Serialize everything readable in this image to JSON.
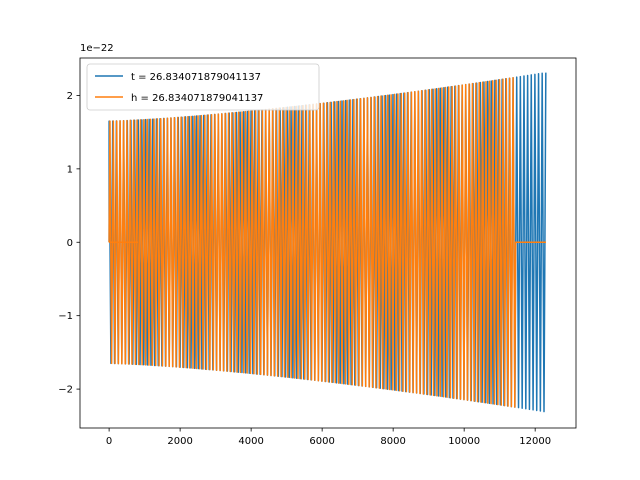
{
  "chart_data": {
    "type": "line",
    "title": "",
    "xlabel": "",
    "ylabel": "",
    "xlim": [
      -820,
      13150
    ],
    "ylim": [
      -2.53,
      2.51
    ],
    "y_scale_label": "1e−22",
    "xticks": [
      0,
      2000,
      4000,
      6000,
      8000,
      10000,
      12000
    ],
    "xtick_labels": [
      "0",
      "2000",
      "4000",
      "6000",
      "8000",
      "10000",
      "12000"
    ],
    "yticks": [
      -2,
      -1,
      0,
      1,
      2
    ],
    "ytick_labels": [
      "−2",
      "−1",
      "0",
      "1",
      "2"
    ],
    "grid": false,
    "legend_position": "top-left",
    "series": [
      {
        "name": "t = 26.834071879041137",
        "color": "#1f77b4",
        "x_range": [
          0,
          12300
        ],
        "amplitude_start": 1.65,
        "amplitude_end": 2.31,
        "signal_onset_x": 0,
        "zero_regions": [
          [
            0,
            820
          ]
        ],
        "cycles": 120
      },
      {
        "name": "h = 26.834071879041137",
        "color": "#ff7f0e",
        "x_range": [
          0,
          12300
        ],
        "amplitude_start": 1.65,
        "amplitude_end": 2.31,
        "signal_onset_x": 0,
        "signal_end_x": 11450,
        "zero_regions": [
          [
            0,
            820
          ],
          [
            11450,
            12300
          ]
        ],
        "cycles": 120
      }
    ]
  }
}
